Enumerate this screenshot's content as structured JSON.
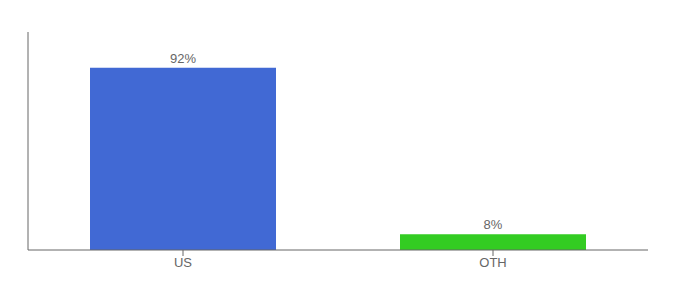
{
  "chart_data": {
    "type": "bar",
    "categories": [
      "US",
      "OTH"
    ],
    "values": [
      92,
      8
    ],
    "value_labels": [
      "92%",
      "8%"
    ],
    "colors": [
      "#4169d4",
      "#33cc22"
    ],
    "ylim": [
      0,
      110
    ],
    "data_labels": true,
    "tick_labels": "x"
  }
}
